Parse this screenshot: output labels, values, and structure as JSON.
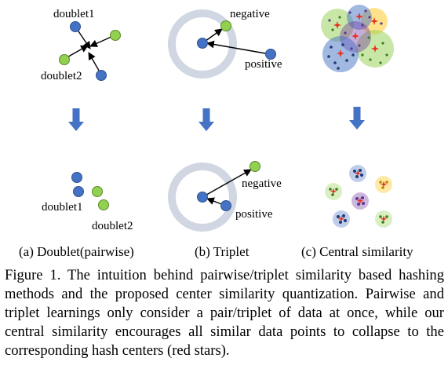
{
  "panels": {
    "a": {
      "top_label_1": "doublet1",
      "top_label_2": "doublet2",
      "bottom_label_1": "doublet1",
      "bottom_label_2": "doublet2",
      "subcaption": "(a) Doublet(pairwise)"
    },
    "b": {
      "top_negative": "negative",
      "top_positive": "positive",
      "bottom_negative": "negative",
      "bottom_positive": "positive",
      "subcaption": "(b) Triplet"
    },
    "c": {
      "subcaption": "(c) Central similarity"
    }
  },
  "caption": "Figure 1. The intuition behind pairwise/triplet similarity based hashing methods and the proposed center similarity quantization. Pairwise and triplet learnings only consider a pair/triplet of data at once, while our central similarity encourages all similar data points to collapse to the corresponding hash centers (red stars).",
  "colors": {
    "blue_point": "#4472c4",
    "green_point": "#92d050",
    "ring": "#d0d6e2",
    "down_arrow": "#4472c4",
    "center_star": "#e8301c"
  }
}
